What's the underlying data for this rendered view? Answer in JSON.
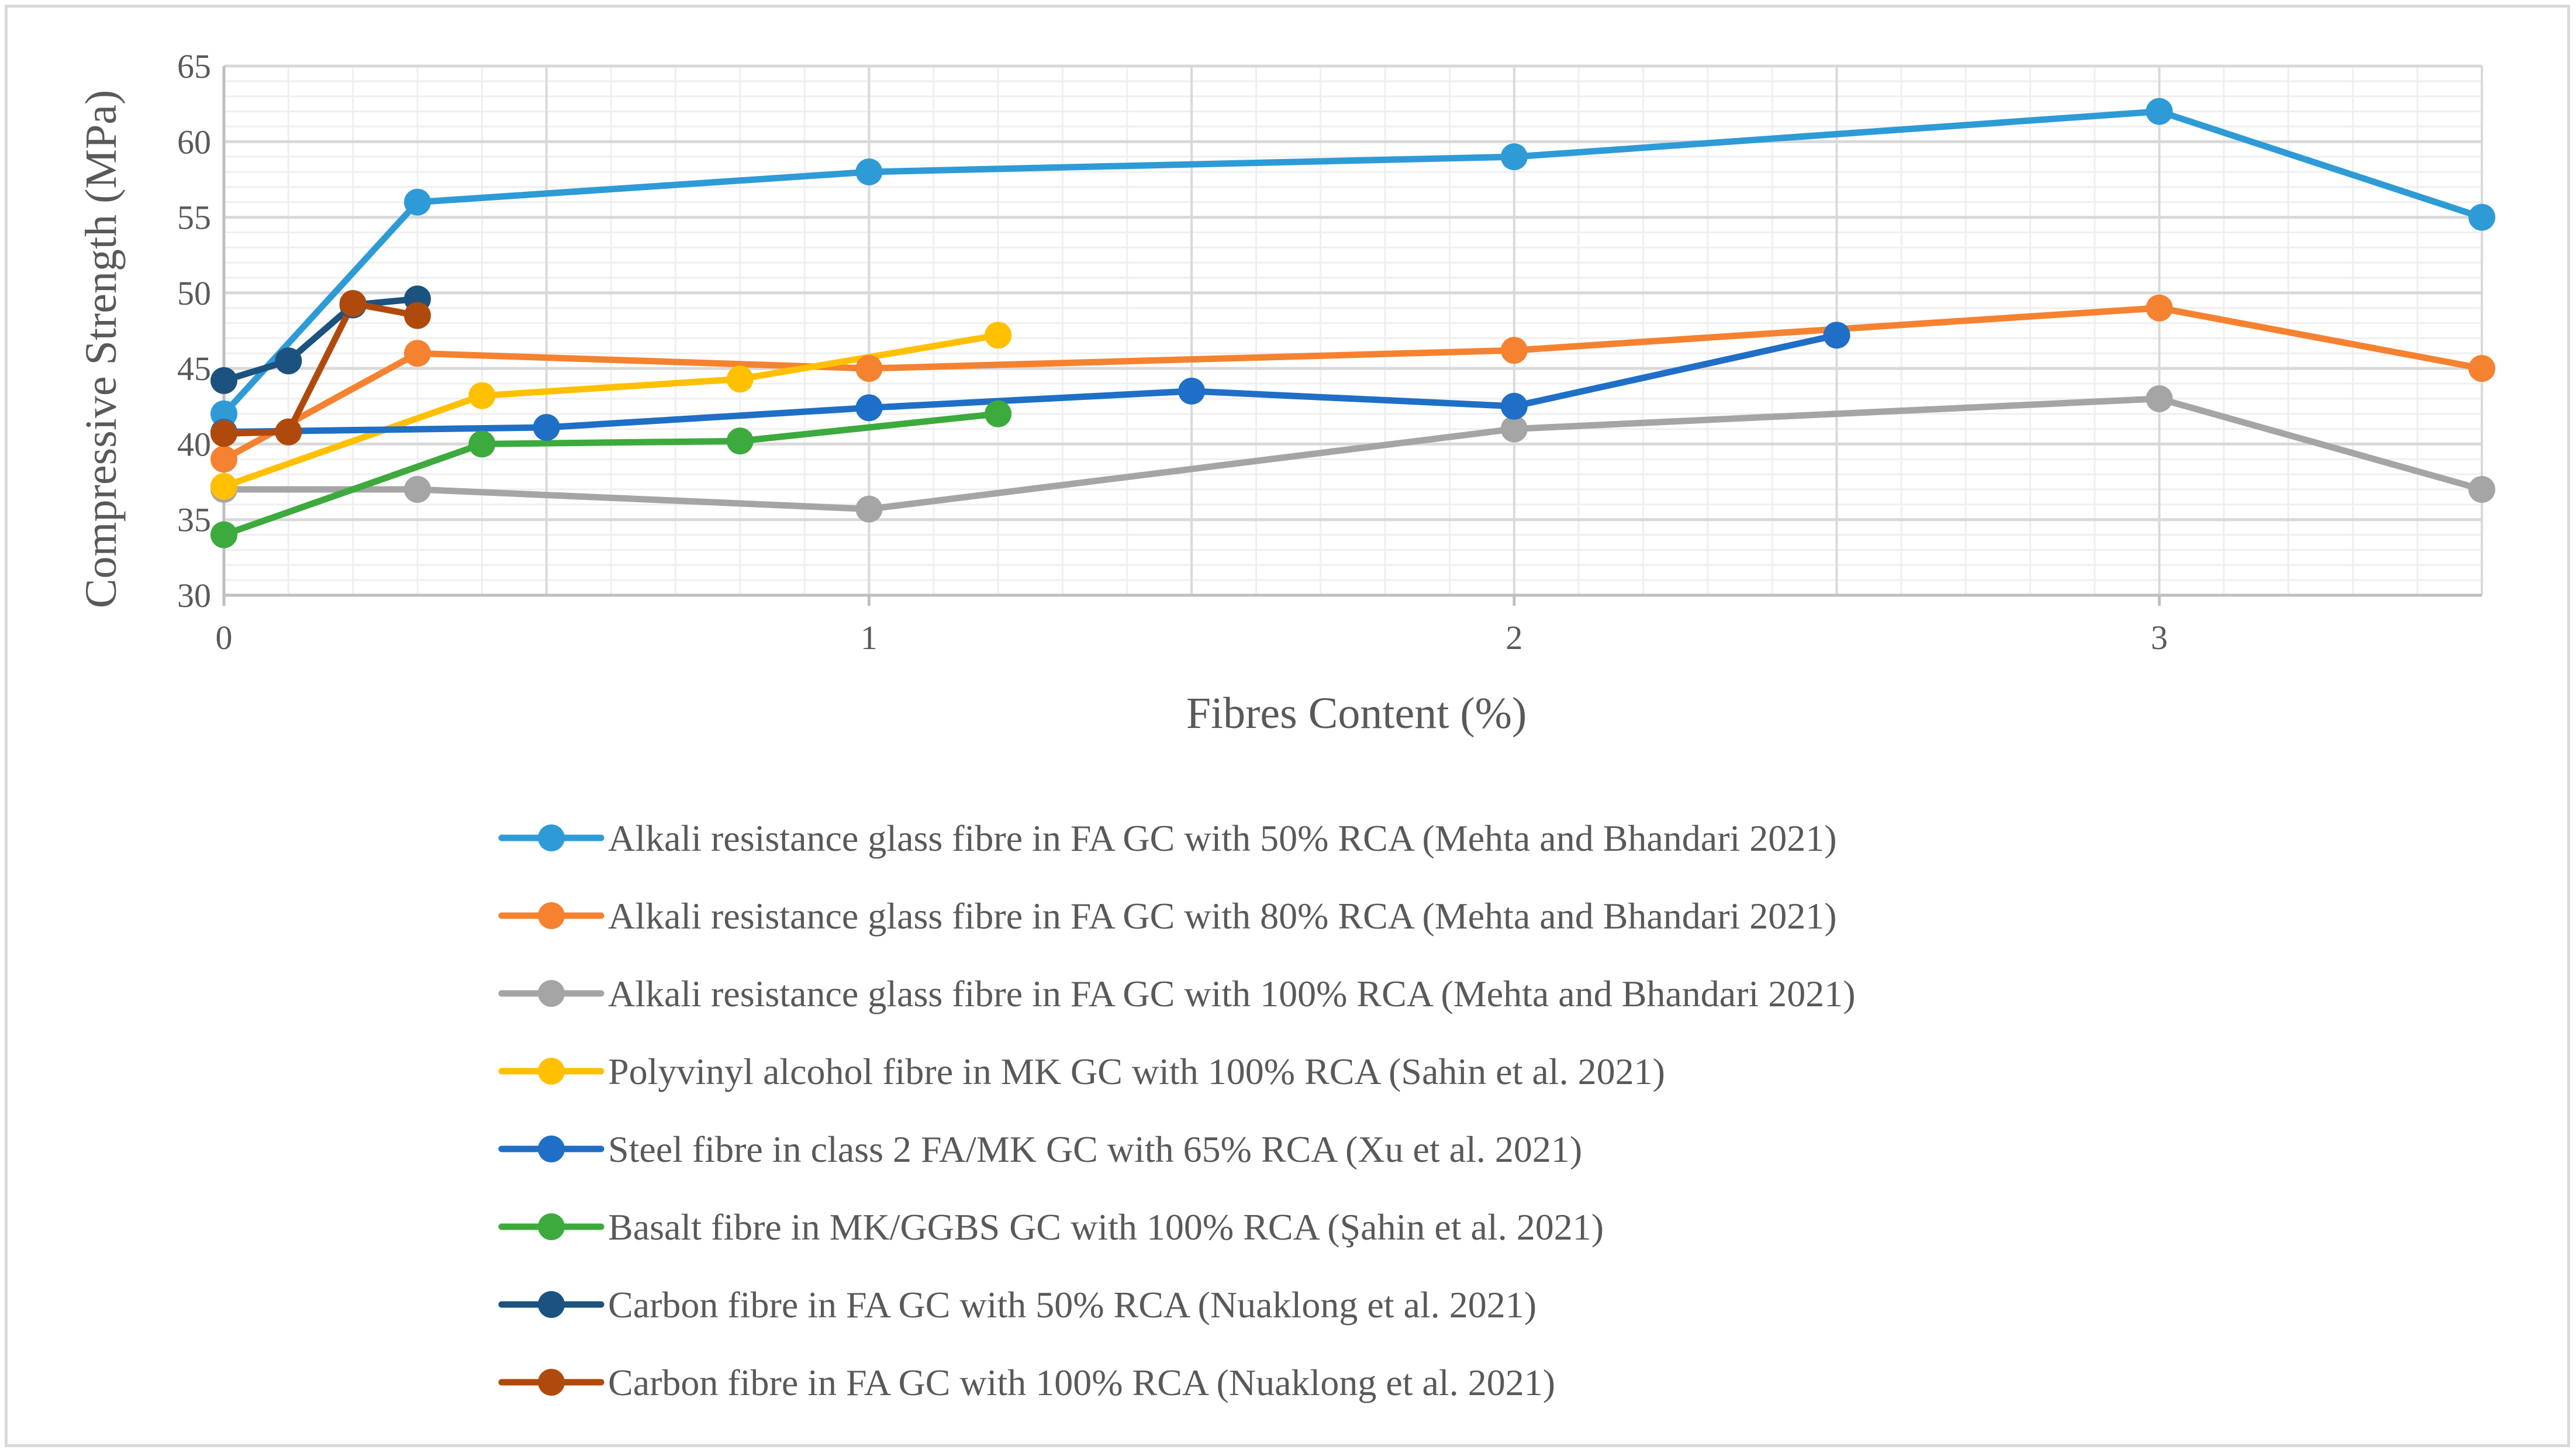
{
  "chart_data": {
    "type": "line",
    "title": "",
    "xlabel": "Fibres Content (%)",
    "ylabel": "Compressive Strength (MPa)",
    "xlim": [
      0,
      3.5
    ],
    "ylim": [
      30,
      65
    ],
    "x_ticks": [
      0,
      1,
      2,
      3
    ],
    "y_ticks": [
      30,
      35,
      40,
      45,
      50,
      55,
      60,
      65
    ],
    "grid": true,
    "legend_position": "bottom",
    "series": [
      {
        "name": "Alkali resistance glass fibre in FA GC with 50% RCA (Mehta and Bhandari 2021)",
        "color": "#2e9bd6",
        "points": [
          [
            0,
            42
          ],
          [
            0.3,
            56
          ],
          [
            1,
            58
          ],
          [
            2,
            59
          ],
          [
            3,
            62
          ],
          [
            3.5,
            55
          ]
        ]
      },
      {
        "name": "Alkali resistance glass fibre in FA GC with 80% RCA (Mehta and Bhandari 2021)",
        "color": "#f58231",
        "points": [
          [
            0,
            39
          ],
          [
            0.3,
            46
          ],
          [
            1,
            45
          ],
          [
            2,
            46.2
          ],
          [
            3,
            49
          ],
          [
            3.5,
            45
          ]
        ]
      },
      {
        "name": "Alkali resistance glass fibre in FA GC with 100% RCA (Mehta and Bhandari 2021)",
        "color": "#a5a5a5",
        "points": [
          [
            0,
            37
          ],
          [
            0.3,
            37
          ],
          [
            1,
            35.7
          ],
          [
            2,
            41
          ],
          [
            3,
            43
          ],
          [
            3.5,
            37
          ]
        ]
      },
      {
        "name": "Polyvinyl alcohol fibre in MK GC with 100% RCA (Sahin et al. 2021)",
        "color": "#ffc000",
        "points": [
          [
            0,
            37.2
          ],
          [
            0.4,
            43.2
          ],
          [
            0.8,
            44.3
          ],
          [
            1.2,
            47.2
          ]
        ]
      },
      {
        "name": "Steel fibre in class 2 FA/MK GC with 65% RCA (Xu et al. 2021)",
        "color": "#1f6fc6",
        "points": [
          [
            0,
            40.8
          ],
          [
            0.5,
            41.1
          ],
          [
            1,
            42.4
          ],
          [
            1.5,
            43.5
          ],
          [
            2,
            42.5
          ],
          [
            2.5,
            47.2
          ]
        ]
      },
      {
        "name": "Basalt fibre in MK/GGBS  GC with 100% RCA (Şahin et al. 2021)",
        "color": "#3daa3d",
        "points": [
          [
            0,
            34
          ],
          [
            0.4,
            40
          ],
          [
            0.8,
            40.2
          ],
          [
            1.2,
            42
          ]
        ]
      },
      {
        "name": "Carbon fibre in FA GC with 50% RCA (Nuaklong et al. 2021)",
        "color": "#1b527f",
        "points": [
          [
            0,
            44.2
          ],
          [
            0.1,
            45.5
          ],
          [
            0.2,
            49.2
          ],
          [
            0.3,
            49.6
          ]
        ]
      },
      {
        "name": "Carbon fibre in FA GC with 100% RCA (Nuaklong et al. 2021)",
        "color": "#b04a0c",
        "points": [
          [
            0,
            40.7
          ],
          [
            0.1,
            40.8
          ],
          [
            0.2,
            49.3
          ],
          [
            0.3,
            48.5
          ]
        ]
      }
    ]
  }
}
